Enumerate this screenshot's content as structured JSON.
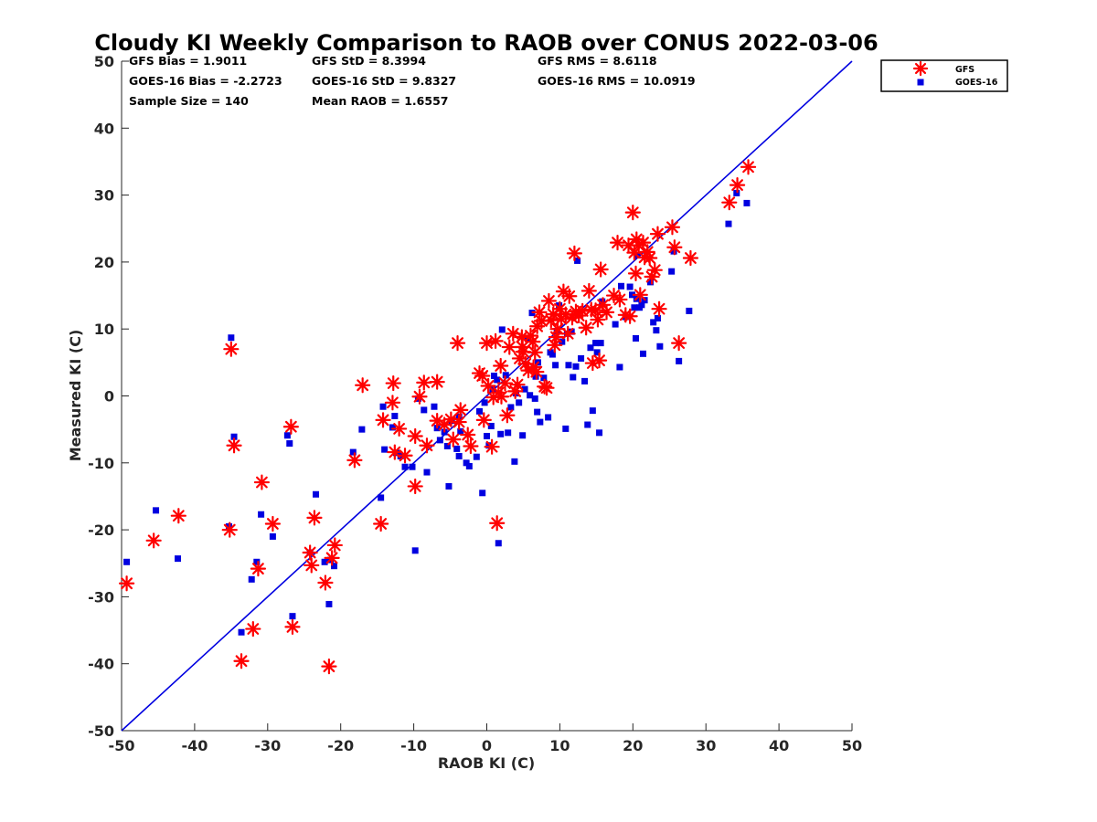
{
  "chart_data": {
    "type": "scatter",
    "title": "Cloudy KI Weekly Comparison to RAOB over CONUS 2022-03-06",
    "xlabel": "RAOB KI (C)",
    "ylabel": "Measured KI (C)",
    "xlim": [
      -50,
      50
    ],
    "ylim": [
      -50,
      50
    ],
    "xticks": [
      "-50",
      "-40",
      "-30",
      "-20",
      "-10",
      "0",
      "10",
      "20",
      "30",
      "40",
      "50"
    ],
    "yticks": [
      "50",
      "40",
      "30",
      "20",
      "10",
      "0",
      "-10",
      "-20",
      "-30",
      "-40",
      "-50"
    ],
    "legend_position": "top-right, outside plot",
    "reference_line": "one-to-one",
    "stats": [
      [
        "GFS Bias = 1.9011",
        "GFS StD = 8.3994",
        "GFS RMS = 8.6118"
      ],
      [
        "GOES-16 Bias = -2.2723",
        "GOES-16 StD = 9.8327",
        "GOES-16 RMS = 10.0919"
      ],
      [
        "Sample Size = 140",
        "Mean RAOB = 1.6557"
      ]
    ],
    "series": [
      {
        "name": "GFS",
        "marker": "asterisk",
        "color": "#ff0000",
        "points": [
          [
            -49.3,
            -28.0
          ],
          [
            -45.6,
            -21.6
          ],
          [
            -42.2,
            -17.9
          ],
          [
            -35.0,
            7.0
          ],
          [
            -35.2,
            -20.0
          ],
          [
            -34.6,
            -7.4
          ],
          [
            -32.0,
            -34.8
          ],
          [
            -33.6,
            -39.6
          ],
          [
            -31.3,
            -25.8
          ],
          [
            -30.8,
            -12.9
          ],
          [
            -29.3,
            -19.1
          ],
          [
            -26.8,
            -4.6
          ],
          [
            -26.6,
            -34.5
          ],
          [
            -24.2,
            -23.4
          ],
          [
            -24.0,
            -25.3
          ],
          [
            -23.6,
            -18.2
          ],
          [
            -22.1,
            -27.9
          ],
          [
            -21.6,
            -40.4
          ],
          [
            -21.2,
            -24.2
          ],
          [
            -20.8,
            -22.3
          ],
          [
            -18.1,
            -9.6
          ],
          [
            -17.0,
            1.6
          ],
          [
            -14.5,
            -19.1
          ],
          [
            -14.2,
            -3.6
          ],
          [
            -12.8,
            1.9
          ],
          [
            -12.9,
            -1.0
          ],
          [
            -12.6,
            -8.4
          ],
          [
            -12.0,
            -4.9
          ],
          [
            -11.2,
            -8.9
          ],
          [
            -9.8,
            -6.0
          ],
          [
            -9.8,
            -13.5
          ],
          [
            -9.2,
            -0.1
          ],
          [
            -8.6,
            2.0
          ],
          [
            -8.2,
            -7.4
          ],
          [
            -6.8,
            -3.7
          ],
          [
            -6.8,
            2.1
          ],
          [
            -5.8,
            -4.3
          ],
          [
            -4.9,
            -3.5
          ],
          [
            -4.6,
            -6.5
          ],
          [
            -4.0,
            7.9
          ],
          [
            -3.8,
            -3.9
          ],
          [
            -3.6,
            -2.1
          ],
          [
            -2.6,
            -5.8
          ],
          [
            -2.2,
            -7.5
          ],
          [
            -1.0,
            3.4
          ],
          [
            -0.6,
            3.0
          ],
          [
            -0.4,
            -3.6
          ],
          [
            0.0,
            7.9
          ],
          [
            0.2,
            1.5
          ],
          [
            0.7,
            -7.6
          ],
          [
            0.9,
            -0.2
          ],
          [
            1.2,
            8.2
          ],
          [
            1.4,
            -19.0
          ],
          [
            1.6,
            0.5
          ],
          [
            1.9,
            4.5
          ],
          [
            2.0,
            -0.1
          ],
          [
            2.5,
            1.9
          ],
          [
            2.8,
            -2.9
          ],
          [
            3.1,
            7.3
          ],
          [
            3.6,
            9.3
          ],
          [
            3.9,
            0.7
          ],
          [
            4.2,
            1.7
          ],
          [
            4.5,
            5.6
          ],
          [
            4.8,
            8.8
          ],
          [
            4.9,
            7.3
          ],
          [
            5.0,
            6.6
          ],
          [
            5.3,
            4.8
          ],
          [
            5.7,
            3.8
          ],
          [
            6.0,
            9.0
          ],
          [
            6.3,
            8.1
          ],
          [
            6.4,
            4.3
          ],
          [
            6.6,
            6.5
          ],
          [
            6.8,
            3.6
          ],
          [
            6.9,
            10.4
          ],
          [
            7.2,
            12.5
          ],
          [
            7.5,
            11.2
          ],
          [
            7.9,
            1.4
          ],
          [
            8.2,
            1.2
          ],
          [
            8.5,
            14.2
          ],
          [
            8.8,
            11.3
          ],
          [
            9.1,
            12.2
          ],
          [
            9.3,
            7.6
          ],
          [
            9.5,
            8.8
          ],
          [
            9.7,
            10.0
          ],
          [
            10.0,
            13.0
          ],
          [
            10.2,
            11.5
          ],
          [
            10.5,
            15.6
          ],
          [
            10.8,
            12.2
          ],
          [
            11.1,
            9.3
          ],
          [
            11.3,
            14.9
          ],
          [
            11.7,
            11.7
          ],
          [
            12.0,
            21.3
          ],
          [
            12.2,
            12.6
          ],
          [
            12.6,
            12.0
          ],
          [
            13.1,
            12.7
          ],
          [
            13.6,
            10.2
          ],
          [
            14.0,
            15.7
          ],
          [
            14.3,
            12.9
          ],
          [
            14.5,
            4.9
          ],
          [
            14.9,
            12.8
          ],
          [
            15.2,
            11.4
          ],
          [
            15.4,
            5.3
          ],
          [
            15.6,
            18.9
          ],
          [
            15.9,
            13.6
          ],
          [
            16.4,
            12.5
          ],
          [
            17.4,
            15.0
          ],
          [
            17.9,
            22.9
          ],
          [
            18.2,
            14.4
          ],
          [
            19.0,
            12.1
          ],
          [
            19.4,
            22.5
          ],
          [
            19.6,
            11.9
          ],
          [
            20.0,
            27.4
          ],
          [
            20.2,
            21.4
          ],
          [
            20.4,
            18.3
          ],
          [
            20.5,
            23.4
          ],
          [
            20.8,
            22.5
          ],
          [
            21.0,
            15.1
          ],
          [
            21.4,
            22.9
          ],
          [
            21.6,
            20.7
          ],
          [
            22.0,
            21.5
          ],
          [
            22.3,
            20.6
          ],
          [
            22.6,
            17.8
          ],
          [
            23.0,
            18.8
          ],
          [
            23.4,
            24.2
          ],
          [
            23.6,
            13.0
          ],
          [
            25.4,
            25.2
          ],
          [
            25.7,
            22.2
          ],
          [
            26.3,
            7.9
          ],
          [
            27.9,
            20.6
          ],
          [
            33.2,
            28.9
          ],
          [
            34.3,
            31.5
          ],
          [
            35.8,
            34.2
          ]
        ]
      },
      {
        "name": "GOES-16",
        "marker": "square",
        "color": "#0000e0",
        "points": [
          [
            -49.3,
            -24.8
          ],
          [
            -45.3,
            -17.1
          ],
          [
            -42.3,
            -24.3
          ],
          [
            -35.0,
            8.7
          ],
          [
            -35.3,
            -19.5
          ],
          [
            -34.6,
            -6.1
          ],
          [
            -33.6,
            -35.3
          ],
          [
            -32.2,
            -27.4
          ],
          [
            -31.5,
            -24.8
          ],
          [
            -30.9,
            -17.7
          ],
          [
            -29.3,
            -21.0
          ],
          [
            -27.3,
            -5.9
          ],
          [
            -27.0,
            -7.1
          ],
          [
            -26.6,
            -32.9
          ],
          [
            -24.2,
            -23.4
          ],
          [
            -23.4,
            -14.7
          ],
          [
            -22.2,
            -24.8
          ],
          [
            -21.6,
            -31.1
          ],
          [
            -21.4,
            -24.5
          ],
          [
            -20.9,
            -25.4
          ],
          [
            -18.3,
            -8.4
          ],
          [
            -17.1,
            -5.0
          ],
          [
            -14.5,
            -15.2
          ],
          [
            -14.2,
            -1.6
          ],
          [
            -14.0,
            -8.0
          ],
          [
            -12.9,
            -4.7
          ],
          [
            -12.6,
            -3.0
          ],
          [
            -12.4,
            -8.5
          ],
          [
            -11.8,
            -9.0
          ],
          [
            -11.2,
            -10.6
          ],
          [
            -10.2,
            -10.6
          ],
          [
            -9.8,
            -23.1
          ],
          [
            -9.4,
            -0.4
          ],
          [
            -8.6,
            -2.1
          ],
          [
            -8.2,
            -11.4
          ],
          [
            -7.2,
            -1.6
          ],
          [
            -6.8,
            -4.8
          ],
          [
            -6.4,
            -6.6
          ],
          [
            -5.8,
            -5.4
          ],
          [
            -5.4,
            -7.5
          ],
          [
            -5.2,
            -13.5
          ],
          [
            -4.8,
            -3.7
          ],
          [
            -4.1,
            -7.9
          ],
          [
            -3.8,
            -9.0
          ],
          [
            -3.8,
            -3.1
          ],
          [
            -3.6,
            -5.3
          ],
          [
            -2.8,
            -10.0
          ],
          [
            -2.4,
            -10.5
          ],
          [
            -1.4,
            -9.1
          ],
          [
            -1.0,
            -2.3
          ],
          [
            -0.6,
            -14.5
          ],
          [
            -0.3,
            -1.0
          ],
          [
            0.0,
            -6.0
          ],
          [
            0.3,
            -7.4
          ],
          [
            0.6,
            -4.5
          ],
          [
            0.8,
            0.9
          ],
          [
            1.0,
            3.0
          ],
          [
            1.4,
            2.4
          ],
          [
            1.6,
            -22.0
          ],
          [
            1.9,
            -5.7
          ],
          [
            2.1,
            9.9
          ],
          [
            2.6,
            3.1
          ],
          [
            2.9,
            -5.5
          ],
          [
            3.3,
            -1.7
          ],
          [
            3.8,
            -9.8
          ],
          [
            4.0,
            0.4
          ],
          [
            4.4,
            -1.0
          ],
          [
            4.9,
            -5.9
          ],
          [
            5.2,
            1.0
          ],
          [
            5.6,
            8.6
          ],
          [
            5.9,
            0.1
          ],
          [
            6.2,
            12.4
          ],
          [
            6.6,
            -0.4
          ],
          [
            6.7,
            2.9
          ],
          [
            6.9,
            -2.4
          ],
          [
            7.0,
            5.0
          ],
          [
            7.3,
            -3.9
          ],
          [
            7.8,
            2.7
          ],
          [
            8.4,
            -3.2
          ],
          [
            8.7,
            6.5
          ],
          [
            9.0,
            6.2
          ],
          [
            9.4,
            4.6
          ],
          [
            9.6,
            9.7
          ],
          [
            9.9,
            13.5
          ],
          [
            10.3,
            8.1
          ],
          [
            10.8,
            -4.9
          ],
          [
            11.0,
            9.3
          ],
          [
            11.2,
            4.6
          ],
          [
            11.6,
            9.6
          ],
          [
            11.8,
            2.8
          ],
          [
            12.2,
            4.4
          ],
          [
            12.4,
            20.2
          ],
          [
            12.9,
            5.6
          ],
          [
            13.4,
            2.2
          ],
          [
            13.8,
            -4.3
          ],
          [
            14.2,
            7.2
          ],
          [
            14.5,
            -2.2
          ],
          [
            14.9,
            7.9
          ],
          [
            15.1,
            6.5
          ],
          [
            15.4,
            -5.5
          ],
          [
            15.6,
            7.9
          ],
          [
            15.8,
            14.1
          ],
          [
            17.6,
            10.7
          ],
          [
            18.2,
            4.3
          ],
          [
            18.4,
            16.4
          ],
          [
            19.0,
            11.8
          ],
          [
            19.6,
            16.3
          ],
          [
            19.9,
            15.1
          ],
          [
            20.2,
            13.2
          ],
          [
            20.4,
            8.6
          ],
          [
            20.5,
            14.5
          ],
          [
            20.6,
            21.0
          ],
          [
            20.9,
            13.2
          ],
          [
            21.2,
            13.6
          ],
          [
            21.4,
            6.3
          ],
          [
            21.6,
            14.3
          ],
          [
            22.4,
            17.0
          ],
          [
            22.8,
            11.0
          ],
          [
            23.4,
            11.6
          ],
          [
            23.2,
            9.8
          ],
          [
            23.7,
            7.4
          ],
          [
            25.3,
            18.6
          ],
          [
            25.6,
            21.6
          ],
          [
            26.3,
            5.2
          ],
          [
            27.7,
            12.7
          ],
          [
            33.1,
            25.7
          ],
          [
            34.2,
            30.3
          ],
          [
            35.6,
            28.8
          ]
        ]
      }
    ]
  }
}
